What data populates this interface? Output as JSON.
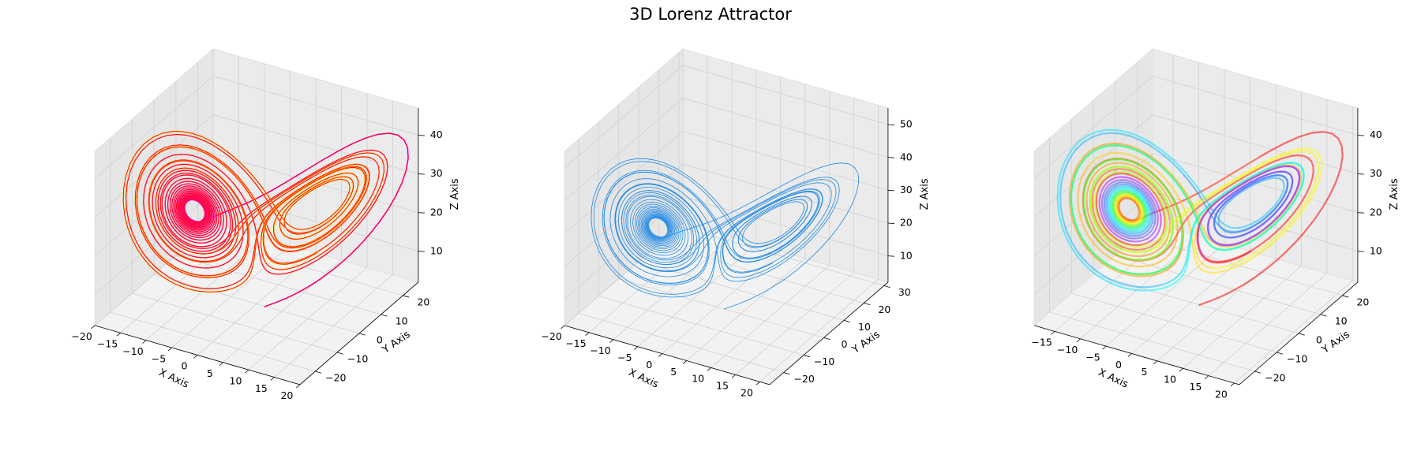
{
  "figure": {
    "title": "3D Lorenz Attractor"
  },
  "chart_data": [
    {
      "type": "line3d",
      "series": [
        {
          "style": "gradient",
          "colors": [
            "#ff00ff",
            "#ffff00"
          ]
        },
        {
          "style": "solid",
          "color": "#ff0000"
        }
      ],
      "axes": {
        "xlabel": "X Axis",
        "ylabel": "Y Axis",
        "zlabel": "Z Axis",
        "xlim": [
          -20,
          20
        ],
        "ylim": [
          -27,
          27
        ],
        "zlim": [
          2,
          47
        ],
        "xticks": [
          -20,
          -15,
          -10,
          -5,
          0,
          5,
          10,
          15,
          20
        ],
        "yticks": [
          -20,
          -10,
          0,
          10,
          20
        ],
        "zticks": [
          10,
          20,
          30,
          40
        ]
      }
    },
    {
      "type": "line3d",
      "series": [
        {
          "style": "solid",
          "color": "#1e88e5"
        }
      ],
      "axes": {
        "xlabel": "X Axis",
        "ylabel": "Y Axis",
        "zlabel": "Z Axis",
        "xlim": [
          -20,
          22
        ],
        "ylim": [
          -27,
          32
        ],
        "zlim": [
          2,
          55
        ],
        "xticks": [
          -20,
          -15,
          -10,
          -5,
          0,
          5,
          10,
          15,
          20
        ],
        "yticks": [
          -20,
          -10,
          0,
          10,
          20,
          30
        ],
        "zticks": [
          10,
          20,
          30,
          40,
          50
        ]
      }
    },
    {
      "type": "line3d",
      "series": [
        {
          "style": "rainbow",
          "colors": [
            "#ff0000",
            "#ff9900",
            "#ffff00",
            "#33ff33",
            "#00ffff",
            "#3366ff",
            "#cc00ff"
          ]
        }
      ],
      "axes": {
        "xlabel": "X Axis",
        "ylabel": "Y Axis",
        "zlabel": "Z Axis",
        "xlim": [
          -19,
          21
        ],
        "ylim": [
          -27,
          27
        ],
        "zlim": [
          2,
          47
        ],
        "xticks": [
          -15,
          -10,
          -5,
          0,
          5,
          10,
          15,
          20
        ],
        "yticks": [
          -20,
          -10,
          0,
          10,
          20
        ],
        "zticks": [
          10,
          20,
          30,
          40
        ]
      }
    }
  ]
}
